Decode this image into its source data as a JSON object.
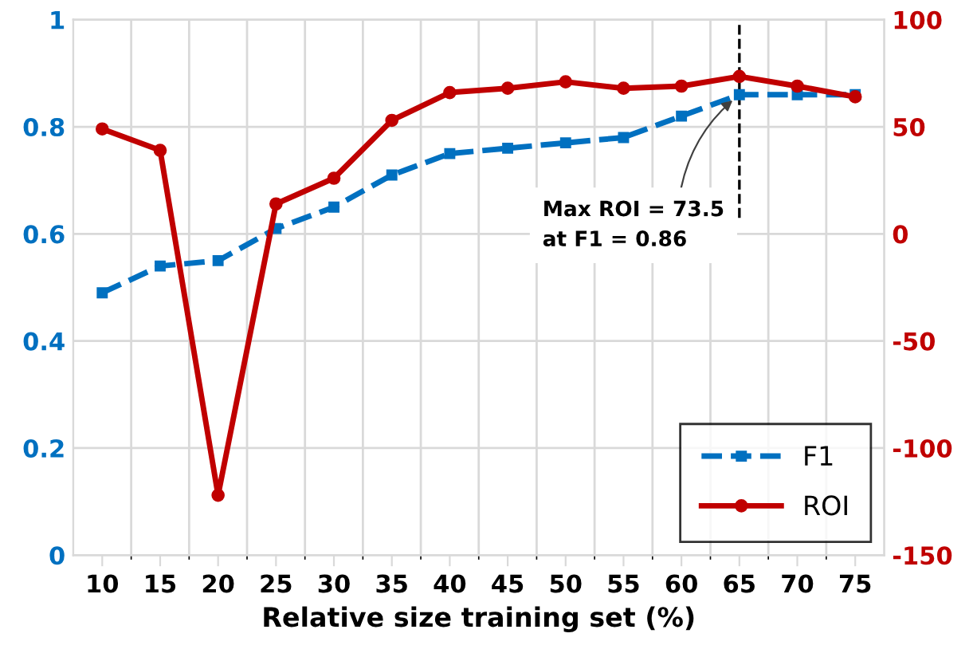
{
  "chart_data": {
    "type": "line",
    "xlabel": "Relative size training set (%)",
    "categories": [
      "10",
      "15",
      "20",
      "25",
      "30",
      "35",
      "40",
      "45",
      "50",
      "55",
      "60",
      "65",
      "70",
      "75"
    ],
    "series": [
      {
        "name": "F1",
        "color": "#0070c0",
        "values": [
          0.49,
          0.54,
          0.55,
          0.61,
          0.65,
          0.71,
          0.75,
          0.76,
          0.77,
          0.78,
          0.82,
          0.86,
          0.86,
          0.86
        ],
        "marker": "square",
        "line_style": "dashed"
      },
      {
        "name": "ROI",
        "color": "#c00000",
        "values": [
          49,
          39,
          -122,
          14,
          26,
          53,
          66,
          68,
          71,
          68,
          69,
          73.5,
          69,
          64
        ],
        "marker": "circle",
        "line_style": "solid",
        "axis": "y2"
      }
    ],
    "ylim": [
      0,
      1
    ],
    "yticks": [
      0,
      0.2,
      0.4,
      0.6,
      0.8,
      1
    ],
    "y2lim": [
      -150,
      100
    ],
    "y2ticks": [
      -150,
      -100,
      -50,
      0,
      50,
      100
    ],
    "ref_lines": [
      {
        "axis": "x",
        "value": "65",
        "color": "#000000",
        "line_style": "dashed"
      }
    ],
    "annotations": [
      {
        "text": "Max ROI = 73.5\nat F1 = 0.86",
        "x": "65",
        "y": 0.86
      }
    ],
    "grid": true,
    "legend": "bottom right"
  }
}
